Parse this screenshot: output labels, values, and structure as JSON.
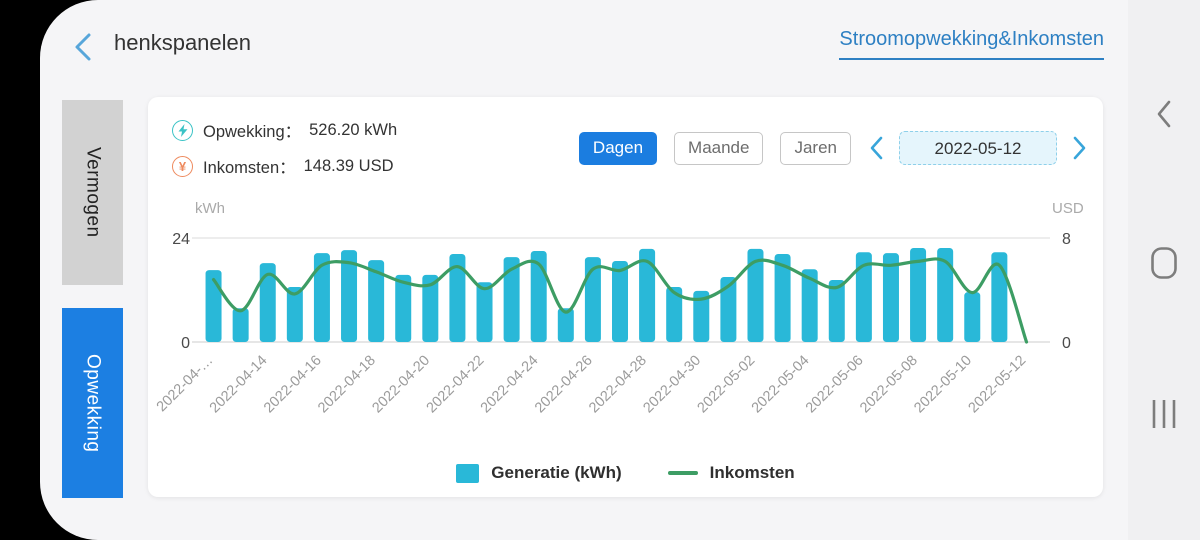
{
  "header": {
    "title": "henkspanelen",
    "back_icon": "chevron-left-icon",
    "link": "Stroomopwekking&Inkomsten"
  },
  "sidebar": {
    "tabs": [
      {
        "label": "Vermogen",
        "active": false
      },
      {
        "label": "Opwekking",
        "active": true
      }
    ]
  },
  "panel": {
    "stats": [
      {
        "icon": "lightning-circle-icon",
        "label": "Opwekking：",
        "value": "526.20 kWh",
        "color": "#3bc3c6"
      },
      {
        "icon": "yen-circle-icon",
        "label": "Inkomsten：",
        "value": "148.39 USD",
        "color": "#ee8a5e"
      }
    ],
    "period_buttons": [
      {
        "label": "Dagen",
        "active": true
      },
      {
        "label": "Maande",
        "active": false
      },
      {
        "label": "Jaren",
        "active": false
      }
    ],
    "date_picker": {
      "value": "2022-05-12"
    }
  },
  "chart_data": {
    "type": "bar",
    "x": [
      "2022-04-12",
      "2022-04-13",
      "2022-04-14",
      "2022-04-15",
      "2022-04-16",
      "2022-04-17",
      "2022-04-18",
      "2022-04-19",
      "2022-04-20",
      "2022-04-21",
      "2022-04-22",
      "2022-04-23",
      "2022-04-24",
      "2022-04-25",
      "2022-04-26",
      "2022-04-27",
      "2022-04-28",
      "2022-04-29",
      "2022-04-30",
      "2022-05-01",
      "2022-05-02",
      "2022-05-03",
      "2022-05-04",
      "2022-05-05",
      "2022-05-06",
      "2022-05-07",
      "2022-05-08",
      "2022-05-09",
      "2022-05-10",
      "2022-05-11",
      "2022-05-12"
    ],
    "x_tick_labels": [
      "2022-04-…",
      "2022-04-14",
      "2022-04-16",
      "2022-04-18",
      "2022-04-20",
      "2022-04-22",
      "2022-04-24",
      "2022-04-26",
      "2022-04-28",
      "2022-04-30",
      "2022-05-02",
      "2022-05-04",
      "2022-05-06",
      "2022-05-08",
      "2022-05-10",
      "2022-05-12"
    ],
    "series": [
      {
        "name": "Generatie (kWh)",
        "type": "bar",
        "axis": "left",
        "color": "#29b8d8",
        "values": [
          16.6,
          7.8,
          18.2,
          12.7,
          20.5,
          21.2,
          18.9,
          15.5,
          15.5,
          20.3,
          13.8,
          19.6,
          21.0,
          7.8,
          19.6,
          18.7,
          21.5,
          12.7,
          11.8,
          15.0,
          21.5,
          20.3,
          16.8,
          14.3,
          20.7,
          20.5,
          21.7,
          21.7,
          11.5,
          20.7,
          0
        ]
      },
      {
        "name": "Inkomsten",
        "type": "line",
        "axis": "right",
        "color": "#3d9d64",
        "values": [
          4.8,
          2.4,
          5.2,
          3.7,
          5.9,
          6.1,
          5.4,
          4.6,
          4.4,
          5.8,
          4.1,
          5.6,
          6.0,
          2.3,
          5.6,
          5.5,
          6.2,
          3.8,
          3.3,
          4.3,
          6.2,
          5.9,
          4.9,
          4.2,
          5.9,
          5.9,
          6.2,
          6.2,
          3.8,
          5.9,
          0
        ]
      }
    ],
    "left_axis": {
      "unit": "kWh",
      "min": 0,
      "max": 24,
      "ticks": [
        24,
        0
      ]
    },
    "right_axis": {
      "unit": "USD",
      "min": 0,
      "max": 8,
      "ticks": [
        8,
        0
      ]
    },
    "grid": "top-and-baseline-only",
    "legend_position": "bottom"
  },
  "nav_bar": {
    "icons": [
      "back",
      "home",
      "recents"
    ]
  },
  "colors": {
    "accent_blue": "#1b7de0",
    "link_blue": "#2e80c3",
    "bar_cyan": "#29b8d8",
    "line_green": "#3d9d64",
    "date_pill_bg": "#e5f5fc"
  }
}
